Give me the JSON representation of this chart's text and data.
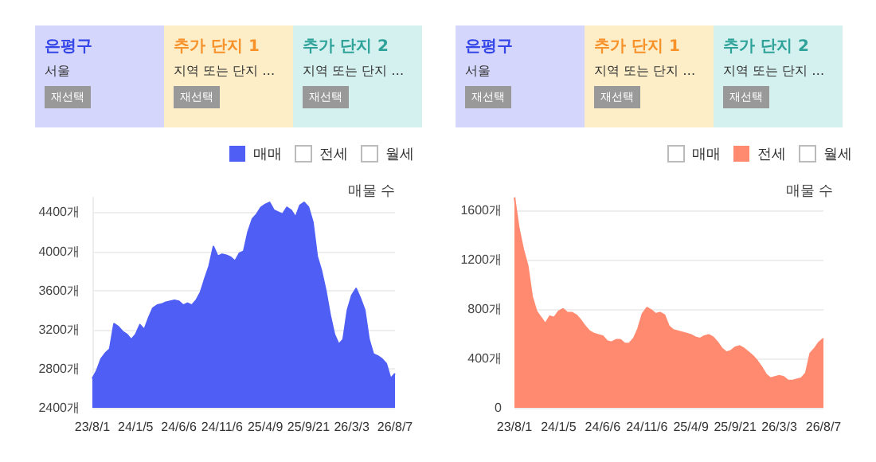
{
  "chart_data": [
    {
      "type": "area",
      "ylabel": "매물 수",
      "legend": "top right",
      "grid": "y",
      "annotations": [
        "은평구",
        "서울",
        "재선택",
        "추가 단지 1",
        "지역 또는 단지 …",
        "재선택",
        "추가 단지 2",
        "지역 또는 단지 …",
        "재선택"
      ],
      "categories": [
        "23/8/1",
        null,
        null,
        null,
        null,
        null,
        null,
        null,
        null,
        null,
        "24/1/5",
        null,
        null,
        null,
        null,
        null,
        null,
        null,
        null,
        null,
        "24/6/6",
        null,
        null,
        null,
        null,
        null,
        null,
        null,
        null,
        null,
        "24/11/6",
        null,
        null,
        null,
        null,
        null,
        null,
        null,
        null,
        null,
        "25/4/9",
        null,
        null,
        null,
        null,
        null,
        null,
        null,
        null,
        null,
        "25/9/21",
        null,
        null,
        null,
        null,
        null,
        null,
        null,
        null,
        null,
        "26/3/3",
        null,
        null,
        null,
        null,
        null,
        null,
        null,
        null,
        null,
        "26/8/7"
      ],
      "ylim": [
        2400,
        4550
      ],
      "yticks": [
        {
          "value": 2400,
          "label": "2400개"
        },
        {
          "value": 2800,
          "label": "2800개"
        },
        {
          "value": 3200,
          "label": "3200개"
        },
        {
          "value": 3600,
          "label": "3600개"
        },
        {
          "value": 4000,
          "label": "4000개"
        },
        {
          "value": 4400,
          "label": "4400개"
        }
      ],
      "series": [
        {
          "name": "매매",
          "color": "#4f5ff5",
          "values": [
            2700,
            2780,
            2900,
            2960,
            3000,
            3260,
            3230,
            3180,
            3150,
            3100,
            3150,
            3250,
            3200,
            3320,
            3420,
            3450,
            3460,
            3480,
            3490,
            3500,
            3490,
            3450,
            3470,
            3450,
            3500,
            3580,
            3720,
            3850,
            4050,
            3950,
            3970,
            3960,
            3940,
            3900,
            3980,
            4000,
            4200,
            4330,
            4380,
            4450,
            4480,
            4500,
            4420,
            4400,
            4380,
            4450,
            4420,
            4350,
            4470,
            4500,
            4450,
            4300,
            3950,
            3800,
            3600,
            3350,
            3150,
            3050,
            3100,
            3400,
            3550,
            3620,
            3520,
            3400,
            3100,
            2950,
            2930,
            2900,
            2850,
            2700,
            2750
          ]
        },
        {
          "name": "전세",
          "color": "#ffffff",
          "values": [
            null,
            null,
            null,
            null,
            null,
            null,
            null,
            null,
            null,
            null,
            null,
            null,
            null,
            null,
            null,
            null,
            null,
            null,
            null,
            null,
            null,
            null,
            null,
            null,
            null,
            null,
            null,
            null,
            null,
            null,
            null,
            null,
            null,
            null,
            null,
            null,
            null,
            null,
            null,
            null,
            null,
            null,
            null,
            null,
            null,
            null,
            null,
            null,
            null,
            null,
            null,
            null,
            null,
            null,
            null,
            null,
            null,
            null,
            null,
            null,
            null,
            null,
            null,
            null,
            null,
            null,
            null,
            null,
            null,
            null,
            null
          ]
        },
        {
          "name": "월세",
          "color": "#ffffff",
          "values": [
            null,
            null,
            null,
            null,
            null,
            null,
            null,
            null,
            null,
            null,
            null,
            null,
            null,
            null,
            null,
            null,
            null,
            null,
            null,
            null,
            null,
            null,
            null,
            null,
            null,
            null,
            null,
            null,
            null,
            null,
            null,
            null,
            null,
            null,
            null,
            null,
            null,
            null,
            null,
            null,
            null,
            null,
            null,
            null,
            null,
            null,
            null,
            null,
            null,
            null,
            null,
            null,
            null,
            null,
            null,
            null,
            null,
            null,
            null,
            null,
            null,
            null,
            null,
            null,
            null,
            null,
            null,
            null,
            null,
            null,
            null
          ]
        }
      ]
    },
    {
      "type": "area",
      "ylabel": "매물 수",
      "legend": "top right",
      "grid": "y",
      "annotations": [
        "은평구",
        "서울",
        "재선택",
        "추가 단지 1",
        "지역 또는 단지 …",
        "재선택",
        "추가 단지 2",
        "지역 또는 단지 …",
        "재선택"
      ],
      "categories": [
        "23/8/1",
        null,
        null,
        null,
        null,
        null,
        null,
        null,
        null,
        null,
        "24/1/5",
        null,
        null,
        null,
        null,
        null,
        null,
        null,
        null,
        null,
        "24/6/6",
        null,
        null,
        null,
        null,
        null,
        null,
        null,
        null,
        null,
        "24/11/6",
        null,
        null,
        null,
        null,
        null,
        null,
        null,
        null,
        null,
        "25/4/9",
        null,
        null,
        null,
        null,
        null,
        null,
        null,
        null,
        null,
        "25/9/21",
        null,
        null,
        null,
        null,
        null,
        null,
        null,
        null,
        null,
        "26/3/3",
        null,
        null,
        null,
        null,
        null,
        null,
        null,
        null,
        null,
        "26/8/7"
      ],
      "ylim": [
        0,
        1700
      ],
      "yticks": [
        0,
        {
          "value": 400,
          "label": "400개"
        },
        {
          "value": 800,
          "label": "800개"
        },
        {
          "value": 1200,
          "label": "1200개"
        },
        {
          "value": 1600,
          "label": "1600개"
        }
      ],
      "series": [
        {
          "name": "매매",
          "color": "#ffffff",
          "values": [
            null,
            null,
            null,
            null,
            null,
            null,
            null,
            null,
            null,
            null,
            null,
            null,
            null,
            null,
            null,
            null,
            null,
            null,
            null,
            null,
            null,
            null,
            null,
            null,
            null,
            null,
            null,
            null,
            null,
            null,
            null,
            null,
            null,
            null,
            null,
            null,
            null,
            null,
            null,
            null,
            null,
            null,
            null,
            null,
            null,
            null,
            null,
            null,
            null,
            null,
            null,
            null,
            null,
            null,
            null,
            null,
            null,
            null,
            null,
            null,
            null,
            null,
            null,
            null,
            null,
            null,
            null,
            null,
            null,
            null,
            null
          ]
        },
        {
          "name": "전세",
          "color": "#ff8a70",
          "values": [
            1700,
            1450,
            1280,
            1150,
            900,
            780,
            730,
            680,
            740,
            730,
            780,
            800,
            770,
            770,
            750,
            710,
            660,
            620,
            600,
            590,
            580,
            540,
            530,
            550,
            550,
            520,
            520,
            560,
            640,
            760,
            810,
            790,
            760,
            770,
            750,
            660,
            630,
            620,
            610,
            600,
            590,
            570,
            560,
            580,
            590,
            570,
            530,
            480,
            450,
            460,
            490,
            500,
            480,
            450,
            420,
            380,
            330,
            270,
            240,
            250,
            260,
            250,
            220,
            220,
            230,
            240,
            280,
            440,
            480,
            530,
            560
          ]
        },
        {
          "name": "월세",
          "color": "#ffffff",
          "values": [
            null,
            null,
            null,
            null,
            null,
            null,
            null,
            null,
            null,
            null,
            null,
            null,
            null,
            null,
            null,
            null,
            null,
            null,
            null,
            null,
            null,
            null,
            null,
            null,
            null,
            null,
            null,
            null,
            null,
            null,
            null,
            null,
            null,
            null,
            null,
            null,
            null,
            null,
            null,
            null,
            null,
            null,
            null,
            null,
            null,
            null,
            null,
            null,
            null,
            null,
            null,
            null,
            null,
            null,
            null,
            null,
            null,
            null,
            null,
            null,
            null,
            null,
            null,
            null,
            null,
            null,
            null,
            null,
            null,
            null,
            null
          ]
        }
      ]
    }
  ]
}
